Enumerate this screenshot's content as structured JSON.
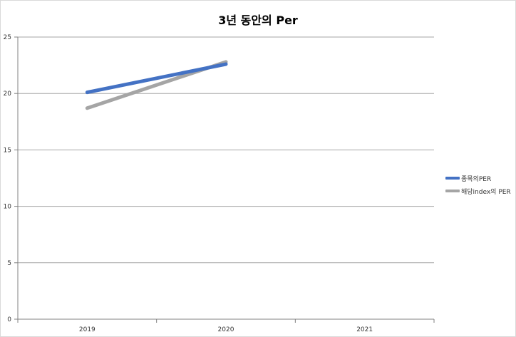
{
  "chart_data": {
    "type": "line",
    "title": "3년 동안의 Per",
    "categories": [
      "2019",
      "2020",
      "2021"
    ],
    "y_ticks": [
      "0",
      "5",
      "10",
      "15",
      "20",
      "25"
    ],
    "ylim": [
      0,
      25
    ],
    "grid": true,
    "legend_position": "right",
    "series": [
      {
        "name": "종목의PER",
        "values": [
          20.1,
          22.6,
          null
        ],
        "color": "#4472c4"
      },
      {
        "name": "해당index의 PER",
        "values": [
          18.7,
          22.8,
          null
        ],
        "color": "#a5a5a5"
      }
    ]
  }
}
